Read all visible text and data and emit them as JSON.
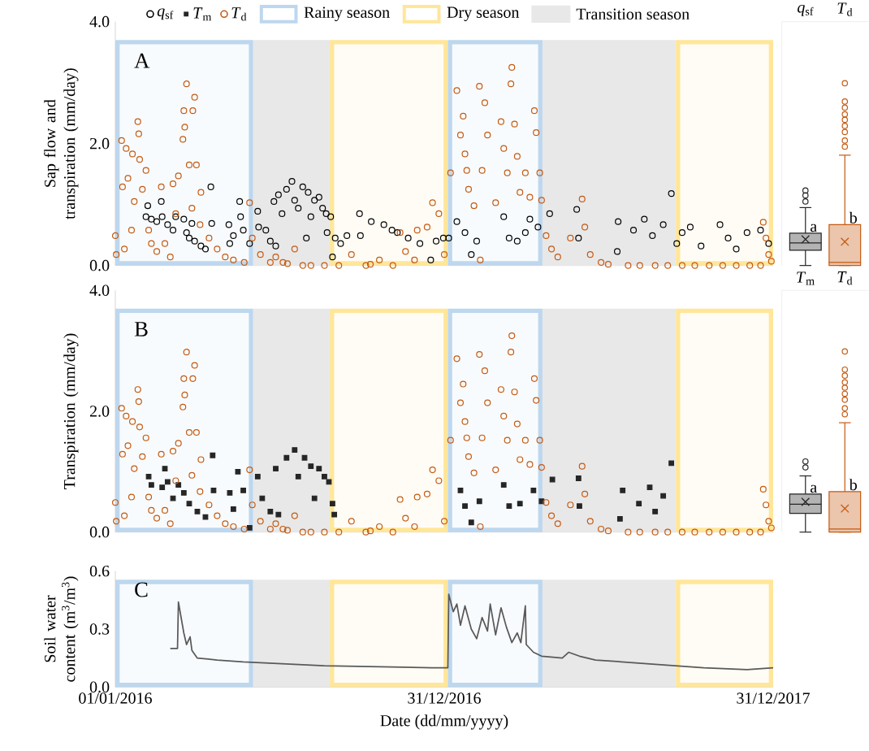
{
  "chart_data": [
    {
      "type": "scatter",
      "ylabel": "Sap flow and transpiration (mm/day)",
      "xlim": [
        "2016-01-01",
        "2017-12-31"
      ],
      "ylim": [
        0,
        4
      ],
      "yticks": [
        {
          "value": 0,
          "label": "0.0"
        },
        {
          "value": 2,
          "label": "2.0"
        },
        {
          "value": 4,
          "label": "4.0"
        }
      ],
      "tick_labels": "y",
      "legend": "top",
      "annotations": [
        "A"
      ],
      "bands": [
        {
          "axis": "x",
          "from": "2016-01-01",
          "to": "2016-06-02",
          "label": "Rainy season",
          "color": "#bdd7ee"
        },
        {
          "axis": "x",
          "from": "2016-08-26",
          "to": "2017-01-04",
          "label": "Dry season",
          "color": "#ffe699"
        },
        {
          "axis": "x",
          "from": "2016-06-02",
          "to": "2016-08-26",
          "label": "Transition season"
        },
        {
          "axis": "x",
          "from": "2017-01-04",
          "to": "2017-04-19",
          "color": "#bdd7ee"
        },
        {
          "axis": "x",
          "from": "2017-04-19",
          "to": "2017-09-14"
        },
        {
          "axis": "x",
          "from": "2017-09-14",
          "to": "2017-12-31",
          "color": "#ffe699"
        }
      ],
      "series": [
        {
          "name": "*q*$_{sf}$",
          "color": "#000000",
          "marker": "circle",
          "x": [
            "2016-02-06",
            "2016-02-04",
            "2016-02-10",
            "2016-02-16",
            "2016-02-22",
            "2016-02-28",
            "2016-02-21",
            "2016-03-05",
            "2016-03-08",
            "2016-03-17",
            "2016-03-20",
            "2016-03-23",
            "2016-03-29",
            "2016-04-05",
            "2016-04-10",
            "2016-03-26",
            "2016-04-16",
            "2016-04-17",
            "2016-05-06",
            "2016-05-11",
            "2016-05-07",
            "2016-05-18",
            "2016-05-19",
            "2016-05-22",
            "2016-05-29",
            "2016-06-07",
            "2016-06-08",
            "2016-06-16",
            "2016-06-21",
            "2016-06-27",
            "2016-06-25",
            "2016-06-30",
            "2016-07-04",
            "2016-07-09",
            "2016-07-15",
            "2016-07-18",
            "2016-07-22",
            "2016-07-27",
            "2016-08-02",
            "2016-07-31",
            "2016-08-05",
            "2016-08-09",
            "2016-08-14",
            "2016-08-18",
            "2016-08-22",
            "2016-08-27",
            "2016-08-23",
            "2016-08-29",
            "2016-09-01",
            "2016-09-07",
            "2016-09-14",
            "2016-09-28",
            "2016-10-11",
            "2016-09-29",
            "2016-10-25",
            "2016-11-03",
            "2016-11-09",
            "2016-11-21",
            "2016-12-04",
            "2016-12-16",
            "2016-12-22",
            "2017-01-05",
            "2016-12-30",
            "2017-01-14",
            "2017-01-23",
            "2017-01-30",
            "2017-02-05",
            "2017-03-07",
            "2017-03-13",
            "2017-03-22",
            "2017-03-31",
            "2017-04-05",
            "2017-04-14",
            "2017-04-27",
            "2017-05-27",
            "2017-05-29",
            "2017-07-11",
            "2017-07-12",
            "2017-07-29",
            "2017-08-10",
            "2017-08-19",
            "2017-08-31",
            "2017-09-09",
            "2017-09-15",
            "2017-09-21",
            "2017-09-30",
            "2017-10-12",
            "2017-11-02",
            "2017-11-11",
            "2017-11-20",
            "2017-12-02",
            "2017-12-17",
            "2017-12-26"
          ],
          "values": [
            0.98,
            0.8,
            0.76,
            0.72,
            0.8,
            0.67,
            1.05,
            0.58,
            0.8,
            0.76,
            0.54,
            0.45,
            0.4,
            0.32,
            0.27,
            0.69,
            1.29,
            0.69,
            0.67,
            0.49,
            0.36,
            1.05,
            0.8,
            0.58,
            0.36,
            0.89,
            0.63,
            0.58,
            0.4,
            0.32,
            1.05,
            1.16,
            0.85,
            1.25,
            1.38,
            1.07,
            0.94,
            1.29,
            1.2,
            0.45,
            0.8,
            1.07,
            1.12,
            0.94,
            0.85,
            0.8,
            0.54,
            0.14,
            0.45,
            0.36,
            0.49,
            0.85,
            0.72,
            0.49,
            0.67,
            0.58,
            0.54,
            0.45,
            0.36,
            0.09,
            0.4,
            0.45,
            0.45,
            0.72,
            0.54,
            0.18,
            0.4,
            0.8,
            0.45,
            0.4,
            0.54,
            0.76,
            0.63,
            0.85,
            0.92,
            0.45,
            0.23,
            0.72,
            0.58,
            0.76,
            0.49,
            0.67,
            1.18,
            0.36,
            0.54,
            0.63,
            0.32,
            0.67,
            0.45,
            0.27,
            0.54,
            0.58,
            0.36
          ]
        },
        {
          "name": "*T*$_{d}$",
          "color": "#c55a11",
          "marker": "circle",
          "x": [
            "2016-01-01",
            "2016-01-02",
            "2016-01-08",
            "2016-01-11",
            "2016-01-13",
            "2016-01-09",
            "2016-01-15",
            "2016-01-19",
            "2016-01-20",
            "2016-01-22",
            "2016-01-26",
            "2016-01-27",
            "2016-01-28",
            "2016-01-31",
            "2016-02-04",
            "2016-02-07",
            "2016-02-10",
            "2016-02-16",
            "2016-02-21",
            "2016-02-25",
            "2016-03-02",
            "2016-03-05",
            "2016-03-11",
            "2016-03-08",
            "2016-03-17",
            "2016-03-20",
            "2016-03-18",
            "2016-03-16",
            "2016-03-29",
            "2016-03-27",
            "2016-03-23",
            "2016-03-31",
            "2016-03-26",
            "2016-04-05",
            "2016-04-04",
            "2016-04-14",
            "2016-04-23",
            "2016-05-02",
            "2016-05-11",
            "2016-05-23",
            "2016-05-29",
            "2016-06-01",
            "2016-06-10",
            "2016-06-21",
            "2016-06-27",
            "2016-07-18",
            "2016-07-10",
            "2016-07-05",
            "2016-07-27",
            "2016-08-05",
            "2016-08-20",
            "2016-09-05",
            "2016-09-19",
            "2016-10-05",
            "2016-10-10",
            "2016-10-20",
            "2016-11-04",
            "2016-11-12",
            "2016-11-18",
            "2016-11-28",
            "2016-12-01",
            "2016-12-12",
            "2016-12-18",
            "2016-12-25",
            "2016-12-31",
            "2017-01-07",
            "2017-01-14",
            "2017-01-18",
            "2017-01-21",
            "2017-01-23",
            "2017-01-25",
            "2017-01-27",
            "2017-02-02",
            "2017-02-08",
            "2017-02-14",
            "2017-02-17",
            "2017-02-11",
            "2017-02-09",
            "2017-02-26",
            "2017-03-04",
            "2017-03-07",
            "2017-03-11",
            "2017-03-16",
            "2017-03-15",
            "2017-03-19",
            "2017-03-22",
            "2017-03-25",
            "2017-03-31",
            "2017-04-05",
            "2017-04-10",
            "2017-04-12",
            "2017-04-16",
            "2017-04-18",
            "2017-04-23",
            "2017-04-29",
            "2017-05-06",
            "2017-05-20",
            "2017-06-02",
            "2017-06-05",
            "2017-06-11",
            "2017-06-23",
            "2017-07-01",
            "2017-07-23",
            "2017-08-05",
            "2017-08-22",
            "2017-09-05",
            "2017-09-21",
            "2017-10-05",
            "2017-10-21",
            "2017-11-05",
            "2017-11-20",
            "2017-12-05",
            "2017-12-17",
            "2017-12-20",
            "2017-12-23",
            "2017-12-26",
            "2017-12-29"
          ],
          "values": [
            0.49,
            0.18,
            2.05,
            0.27,
            1.92,
            1.29,
            1.43,
            0.58,
            1.83,
            1.05,
            2.36,
            2.16,
            1.74,
            1.25,
            1.56,
            0.58,
            0.36,
            0.23,
            1.29,
            0.36,
            0.14,
            1.34,
            1.47,
            0.85,
            2.54,
            2.98,
            2.27,
            2.07,
            2.76,
            2.54,
            1.65,
            1.65,
            0.94,
            1.2,
            0.67,
            0.45,
            0.27,
            0.14,
            0.09,
            0.05,
            1.03,
            0.45,
            0.18,
            0.05,
            0.14,
            0.27,
            0.03,
            0.05,
            0.0,
            0.0,
            0.0,
            0.0,
            0.18,
            0.0,
            0.02,
            0.09,
            0.0,
            0.54,
            0.23,
            0.09,
            0.58,
            0.63,
            1.03,
            0.85,
            0.18,
            1.52,
            2.87,
            2.14,
            2.45,
            1.83,
            1.56,
            1.25,
            0.98,
            2.94,
            2.67,
            2.14,
            1.56,
            0.09,
            1.03,
            2.36,
            1.92,
            1.52,
            3.25,
            2.98,
            2.32,
            1.79,
            1.2,
            1.52,
            1.12,
            2.54,
            2.18,
            1.52,
            1.07,
            0.49,
            0.27,
            0.14,
            0.45,
            1.09,
            0.63,
            0.18,
            0.05,
            0.02,
            0.0,
            0.0,
            0.0,
            0.0,
            0.0,
            0.0,
            0.0,
            0.0,
            0.0,
            0.0,
            0.0,
            0.71,
            0.45,
            0.18,
            0.07
          ]
        }
      ]
    },
    {
      "type": "scatter",
      "ylabel": "Transpiration (mm/day)",
      "xlim": [
        "2016-01-01",
        "2017-12-31"
      ],
      "ylim": [
        0,
        4
      ],
      "yticks": [
        {
          "value": 0,
          "label": "0.0"
        },
        {
          "value": 2,
          "label": "2.0"
        },
        {
          "value": 4,
          "label": "4.0"
        }
      ],
      "tick_labels": "y",
      "annotations": [
        "B"
      ],
      "bands": [
        {
          "axis": "x",
          "from": "2016-01-01",
          "to": "2016-06-02",
          "color": "#bdd7ee"
        },
        {
          "axis": "x",
          "from": "2016-08-26",
          "to": "2017-01-04",
          "color": "#ffe699"
        },
        {
          "axis": "x",
          "from": "2016-06-02",
          "to": "2016-08-26"
        },
        {
          "axis": "x",
          "from": "2017-01-04",
          "to": "2017-04-19",
          "color": "#bdd7ee"
        },
        {
          "axis": "x",
          "from": "2017-04-19",
          "to": "2017-09-14"
        },
        {
          "axis": "x",
          "from": "2017-09-14",
          "to": "2017-12-31",
          "color": "#ffe699"
        }
      ],
      "series": [
        {
          "name": "*T*$_{m}$",
          "color": "#262626",
          "marker": "square",
          "x": [
            "2016-02-07",
            "2016-02-10",
            "2016-02-22",
            "2016-02-28",
            "2016-03-05",
            "2016-02-25",
            "2016-03-11",
            "2016-03-17",
            "2016-03-23",
            "2016-04-01",
            "2016-04-10",
            "2016-04-18",
            "2016-04-19",
            "2016-05-07",
            "2016-05-11",
            "2016-05-16",
            "2016-05-22",
            "2016-05-29",
            "2016-06-07",
            "2016-06-12",
            "2016-06-21",
            "2016-06-30",
            "2016-06-27",
            "2016-07-09",
            "2016-07-18",
            "2016-07-22",
            "2016-07-29",
            "2016-08-05",
            "2016-08-09",
            "2016-08-14",
            "2016-08-20",
            "2016-08-25",
            "2016-08-29",
            "2016-08-31",
            "2017-01-18",
            "2017-01-23",
            "2017-01-30",
            "2017-02-08",
            "2017-03-07",
            "2017-03-13",
            "2017-03-25",
            "2017-04-09",
            "2017-04-18",
            "2017-04-30",
            "2017-05-29",
            "2017-05-30",
            "2017-07-14",
            "2017-07-17",
            "2017-08-04",
            "2017-08-16",
            "2017-08-22",
            "2017-08-31",
            "2017-09-09"
          ],
          "values": [
            0.92,
            0.78,
            0.74,
            0.83,
            0.56,
            1.05,
            0.78,
            0.65,
            0.47,
            0.34,
            0.25,
            1.27,
            0.69,
            0.65,
            0.38,
            1.0,
            0.69,
            0.07,
            0.92,
            0.56,
            0.34,
            0.29,
            1.05,
            1.23,
            1.36,
            0.92,
            1.23,
            1.09,
            0.56,
            1.05,
            0.92,
            0.83,
            0.47,
            0.29,
            0.69,
            0.43,
            0.16,
            0.51,
            0.78,
            0.43,
            0.47,
            0.69,
            0.51,
            0.87,
            0.89,
            0.43,
            0.22,
            0.69,
            0.47,
            0.74,
            0.34,
            0.6,
            1.14
          ]
        },
        {
          "color": "#c55a11",
          "marker": "circle",
          "x": [
            "2016-01-01",
            "2016-01-02",
            "2016-01-08",
            "2016-01-11",
            "2016-01-13",
            "2016-01-09",
            "2016-01-15",
            "2016-01-19",
            "2016-01-20",
            "2016-01-22",
            "2016-01-26",
            "2016-01-27",
            "2016-01-28",
            "2016-01-31",
            "2016-02-04",
            "2016-02-07",
            "2016-02-10",
            "2016-02-16",
            "2016-02-21",
            "2016-02-25",
            "2016-03-02",
            "2016-03-05",
            "2016-03-11",
            "2016-03-08",
            "2016-03-17",
            "2016-03-20",
            "2016-03-18",
            "2016-03-16",
            "2016-03-29",
            "2016-03-27",
            "2016-03-23",
            "2016-03-31",
            "2016-03-26",
            "2016-04-05",
            "2016-04-04",
            "2016-04-14",
            "2016-04-23",
            "2016-05-02",
            "2016-05-11",
            "2016-05-23",
            "2016-05-29",
            "2016-06-01",
            "2016-06-10",
            "2016-06-21",
            "2016-06-27",
            "2016-07-18",
            "2016-07-10",
            "2016-07-05",
            "2016-07-27",
            "2016-08-05",
            "2016-08-20",
            "2016-09-05",
            "2016-09-19",
            "2016-10-05",
            "2016-10-10",
            "2016-10-20",
            "2016-11-04",
            "2016-11-12",
            "2016-11-18",
            "2016-11-28",
            "2016-12-01",
            "2016-12-12",
            "2016-12-18",
            "2016-12-25",
            "2016-12-31",
            "2017-01-07",
            "2017-01-14",
            "2017-01-18",
            "2017-01-21",
            "2017-01-23",
            "2017-01-25",
            "2017-01-27",
            "2017-02-02",
            "2017-02-08",
            "2017-02-14",
            "2017-02-17",
            "2017-02-11",
            "2017-02-09",
            "2017-02-26",
            "2017-03-04",
            "2017-03-07",
            "2017-03-11",
            "2017-03-16",
            "2017-03-15",
            "2017-03-19",
            "2017-03-22",
            "2017-03-25",
            "2017-03-31",
            "2017-04-05",
            "2017-04-10",
            "2017-04-12",
            "2017-04-16",
            "2017-04-18",
            "2017-04-23",
            "2017-04-29",
            "2017-05-06",
            "2017-05-20",
            "2017-06-02",
            "2017-06-05",
            "2017-06-11",
            "2017-06-23",
            "2017-07-01",
            "2017-07-23",
            "2017-08-05",
            "2017-08-22",
            "2017-09-05",
            "2017-09-21",
            "2017-10-05",
            "2017-10-21",
            "2017-11-05",
            "2017-11-20",
            "2017-12-05",
            "2017-12-17",
            "2017-12-20",
            "2017-12-23",
            "2017-12-26",
            "2017-12-29"
          ],
          "values": [
            0.49,
            0.18,
            2.05,
            0.27,
            1.92,
            1.29,
            1.43,
            0.58,
            1.83,
            1.05,
            2.36,
            2.16,
            1.74,
            1.25,
            1.56,
            0.58,
            0.36,
            0.23,
            1.29,
            0.36,
            0.14,
            1.34,
            1.47,
            0.85,
            2.54,
            2.98,
            2.27,
            2.07,
            2.76,
            2.54,
            1.65,
            1.65,
            0.94,
            1.2,
            0.67,
            0.45,
            0.27,
            0.14,
            0.09,
            0.05,
            1.03,
            0.45,
            0.18,
            0.05,
            0.14,
            0.27,
            0.03,
            0.05,
            0.0,
            0.0,
            0.0,
            0.0,
            0.18,
            0.0,
            0.02,
            0.09,
            0.0,
            0.54,
            0.23,
            0.09,
            0.58,
            0.63,
            1.03,
            0.85,
            0.18,
            1.52,
            2.87,
            2.14,
            2.45,
            1.83,
            1.56,
            1.25,
            0.98,
            2.94,
            2.67,
            2.14,
            1.56,
            0.09,
            1.03,
            2.36,
            1.92,
            1.52,
            3.25,
            2.98,
            2.32,
            1.79,
            1.2,
            1.52,
            1.12,
            2.54,
            2.18,
            1.52,
            1.07,
            0.49,
            0.27,
            0.14,
            0.45,
            1.09,
            0.63,
            0.18,
            0.05,
            0.02,
            0.0,
            0.0,
            0.0,
            0.0,
            0.0,
            0.0,
            0.0,
            0.0,
            0.0,
            0.0,
            0.0,
            0.71,
            0.45,
            0.18,
            0.07
          ]
        }
      ]
    },
    {
      "type": "line",
      "ylabel": "Soil water content (m$^{3}$/m$^{3}$)",
      "xlabel": "Date (dd/mm/yyyy)",
      "xlim": [
        "2016-01-01",
        "2017-12-31"
      ],
      "ylim": [
        0,
        0.6
      ],
      "xticks": [
        {
          "value": "2016-01-01",
          "label": "01/01/2016"
        },
        {
          "value": "2016-12-31",
          "label": "31/12/2016"
        },
        {
          "value": "2017-12-31",
          "label": "31/12/2017"
        }
      ],
      "yticks": [
        {
          "value": 0,
          "label": "0.0"
        },
        {
          "value": 0.3,
          "label": "0.3"
        },
        {
          "value": 0.6,
          "label": "0.6"
        }
      ],
      "annotations": [
        "C"
      ],
      "bands": [
        {
          "axis": "x",
          "from": "2016-01-01",
          "to": "2016-06-02",
          "color": "#bdd7ee"
        },
        {
          "axis": "x",
          "from": "2016-08-26",
          "to": "2017-01-04",
          "color": "#ffe699"
        },
        {
          "axis": "x",
          "from": "2016-06-02",
          "to": "2016-08-26"
        },
        {
          "axis": "x",
          "from": "2017-01-04",
          "to": "2017-04-19",
          "color": "#bdd7ee"
        },
        {
          "axis": "x",
          "from": "2017-04-19",
          "to": "2017-09-14"
        },
        {
          "axis": "x",
          "from": "2017-09-14",
          "to": "2017-12-31",
          "color": "#ffe699"
        }
      ],
      "series": [
        {
          "color": "#595959",
          "line_style": "solid",
          "x": [
            "2016-03-02",
            "2016-03-10",
            "2016-03-11",
            "2016-03-14",
            "2016-03-17",
            "2016-03-20",
            "2016-03-24",
            "2016-03-26",
            "2016-04-01",
            "2016-04-23",
            "2016-05-22",
            "2016-08-20",
            "2016-12-18",
            "2017-01-04",
            "2017-01-05",
            "2017-01-10",
            "2017-01-14",
            "2017-01-18",
            "2017-01-23",
            "2017-01-30",
            "2017-02-05",
            "2017-02-11",
            "2017-02-17",
            "2017-02-20",
            "2017-02-26",
            "2017-03-04",
            "2017-03-10",
            "2017-03-16",
            "2017-03-22",
            "2017-03-26",
            "2017-03-31",
            "2017-04-01",
            "2017-04-09",
            "2017-04-18",
            "2017-05-11",
            "2017-05-18",
            "2017-05-30",
            "2017-06-17",
            "2017-08-16",
            "2017-10-15",
            "2017-12-02",
            "2017-12-31"
          ],
          "values": [
            0.2,
            0.2,
            0.44,
            0.36,
            0.28,
            0.22,
            0.26,
            0.19,
            0.15,
            0.14,
            0.13,
            0.11,
            0.1,
            0.1,
            0.48,
            0.39,
            0.43,
            0.32,
            0.42,
            0.3,
            0.25,
            0.36,
            0.29,
            0.43,
            0.27,
            0.41,
            0.31,
            0.23,
            0.28,
            0.23,
            0.42,
            0.22,
            0.18,
            0.16,
            0.15,
            0.18,
            0.16,
            0.14,
            0.12,
            0.1,
            0.09,
            0.1
          ]
        }
      ]
    },
    {
      "type": "box",
      "categories": [
        "*q*$_{sf}$",
        "*T*$_{d}$"
      ],
      "ylim": [
        0,
        4
      ],
      "tick_labels": false,
      "colors": [
        "#262626",
        "#c55a11"
      ],
      "annotations": [
        "a",
        "b"
      ],
      "boxes": [
        {
          "low": 0.0,
          "q1": 0.25,
          "median": 0.37,
          "q3": 0.53,
          "high": 0.95,
          "mean": 0.43,
          "outliers": [
            1.05,
            1.15,
            1.23
          ]
        },
        {
          "low": 0.0,
          "q1": 0.0,
          "median": 0.05,
          "q3": 0.67,
          "high": 1.81,
          "mean": 0.39,
          "outliers": [
            1.95,
            2.05,
            2.19,
            2.29,
            2.39,
            2.48,
            2.59,
            2.69,
            2.99
          ]
        }
      ]
    },
    {
      "type": "box",
      "categories": [
        "*T*$_{m}$",
        "*T*$_{d}$"
      ],
      "ylim": [
        0,
        4
      ],
      "tick_labels": false,
      "colors": [
        "#262626",
        "#c55a11"
      ],
      "annotations": [
        "a",
        "b"
      ],
      "boxes": [
        {
          "low": 0.0,
          "q1": 0.31,
          "median": 0.46,
          "q3": 0.63,
          "high": 0.93,
          "mean": 0.5,
          "outliers": [
            1.07,
            1.17
          ]
        },
        {
          "low": 0.0,
          "q1": 0.0,
          "median": 0.05,
          "q3": 0.67,
          "high": 1.81,
          "mean": 0.39,
          "outliers": [
            1.95,
            2.05,
            2.19,
            2.29,
            2.39,
            2.48,
            2.59,
            2.69,
            2.99
          ]
        }
      ]
    }
  ]
}
